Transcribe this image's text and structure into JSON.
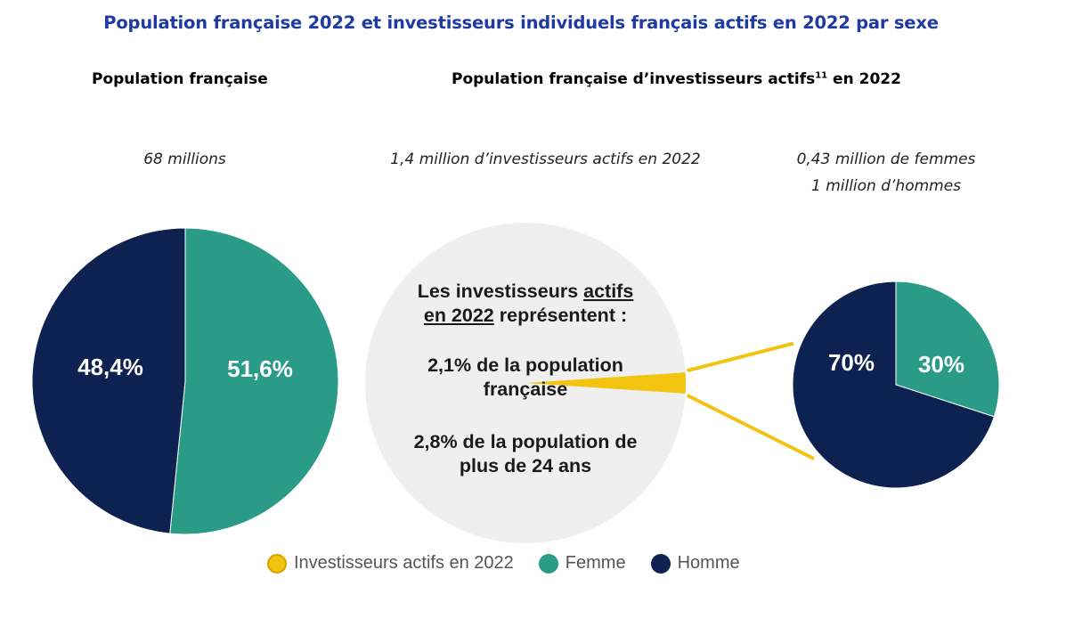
{
  "title": "Population française 2022 et investisseurs individuels français actifs en 2022 par sexe",
  "left_heading": "Population française",
  "right_heading_main": "Population française d’investisseurs actifs",
  "right_heading_sup": "11",
  "right_heading_tail": " en 2022",
  "left_note": "68 millions",
  "center_note": "1,4 million d’investisseurs actifs en 2022",
  "right_note_line1": "0,43 million de femmes",
  "right_note_line2": "1 million d’hommes",
  "center_circle": {
    "line1_a": "Les investisseurs ",
    "line1_b": "actifs",
    "line2_a": "en 2022",
    "line2_b": " représentent :",
    "stat1_line1": "2,1% de la population",
    "stat1_line2": "française",
    "stat2_line1": "2,8% de la population de",
    "stat2_line2": "plus de 24 ans"
  },
  "colors": {
    "femme": "#2a9b87",
    "homme": "#0d2250",
    "investisseurs": "#f2c30f",
    "center_circle": "#efefef",
    "title": "#1f3aa0"
  },
  "legend": [
    {
      "label": "Investisseurs actifs en 2022",
      "color": "#f2c30f"
    },
    {
      "label": "Femme",
      "color": "#2a9b87"
    },
    {
      "label": "Homme",
      "color": "#0d2250"
    }
  ],
  "chart_data": [
    {
      "type": "pie",
      "title": "Population française",
      "categories": [
        "Femme",
        "Homme"
      ],
      "values": [
        51.6,
        48.4
      ],
      "labels": [
        "51,6%",
        "48,4%"
      ]
    },
    {
      "type": "pie",
      "title": "Population française d’investisseurs actifs en 2022",
      "categories": [
        "Femme",
        "Homme"
      ],
      "values": [
        30,
        70
      ],
      "labels": [
        "30%",
        "70%"
      ]
    },
    {
      "type": "pie",
      "title": "Investisseurs actifs en 2022",
      "categories": [
        "Investisseurs actifs en 2022"
      ],
      "values": [
        2.1
      ],
      "labels": [
        "2,1%"
      ]
    }
  ]
}
